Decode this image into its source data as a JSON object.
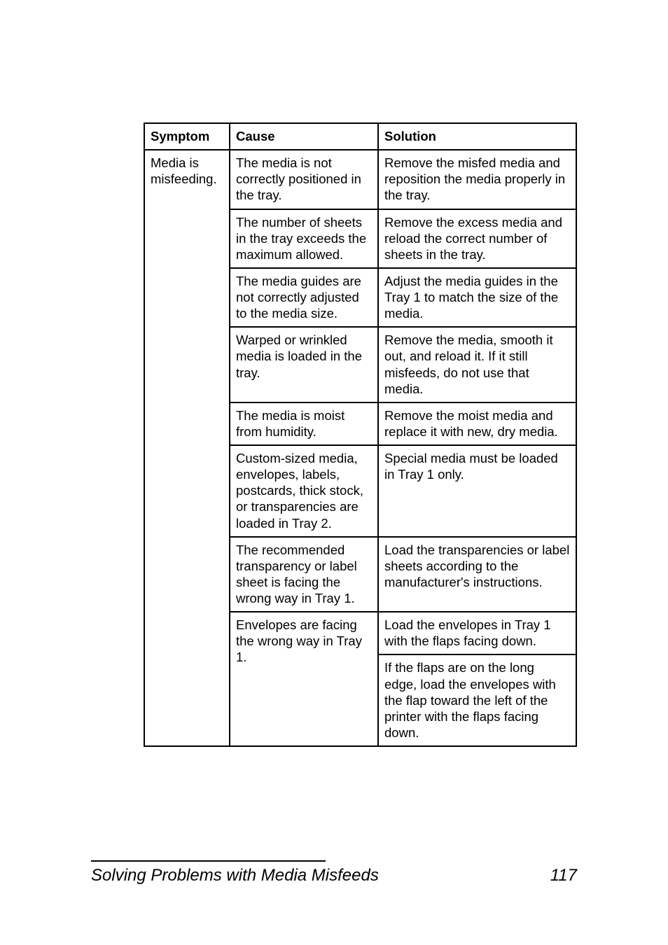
{
  "table": {
    "headers": {
      "symptom": "Symptom",
      "cause": "Cause",
      "solution": "Solution"
    },
    "symptom": "Media is misfeeding.",
    "rows": [
      {
        "cause": "The media is not correctly positioned in the tray.",
        "solution": "Remove the misfed media and reposition the media properly in the tray."
      },
      {
        "cause": "The number of sheets in the tray exceeds the maximum allowed.",
        "solution": "Remove the excess media and reload the correct number of sheets in the tray."
      },
      {
        "cause": "The media guides are not correctly adjusted to the media size.",
        "solution": "Adjust the media guides in the Tray 1 to match the size of the media."
      },
      {
        "cause": "Warped or wrinkled media is loaded in the tray.",
        "solution": "Remove the media, smooth it out, and reload it. If it still misfeeds, do not use that media."
      },
      {
        "cause": "The media is moist from humidity.",
        "solution": "Remove the moist media and replace it with new, dry media."
      },
      {
        "cause": "Custom-sized media, envelopes, labels, postcards, thick stock, or transparencies are loaded in Tray 2.",
        "solution": "Special media must be loaded in Tray 1 only."
      },
      {
        "cause": "The recommended transparency or label sheet is facing the wrong way in Tray 1.",
        "solution": "Load the transparencies or label sheets according to the manufacturer's instructions."
      },
      {
        "cause": "Envelopes are facing the wrong way in Tray 1.",
        "solution": "Load the envelopes in Tray 1 with the flaps facing down."
      },
      {
        "cause": "",
        "solution": "If the flaps are on the long edge, load the envelopes with the flap toward the left of the printer with the flaps facing down."
      }
    ]
  },
  "footer": {
    "title": "Solving Problems with Media Misfeeds",
    "page": "117"
  }
}
